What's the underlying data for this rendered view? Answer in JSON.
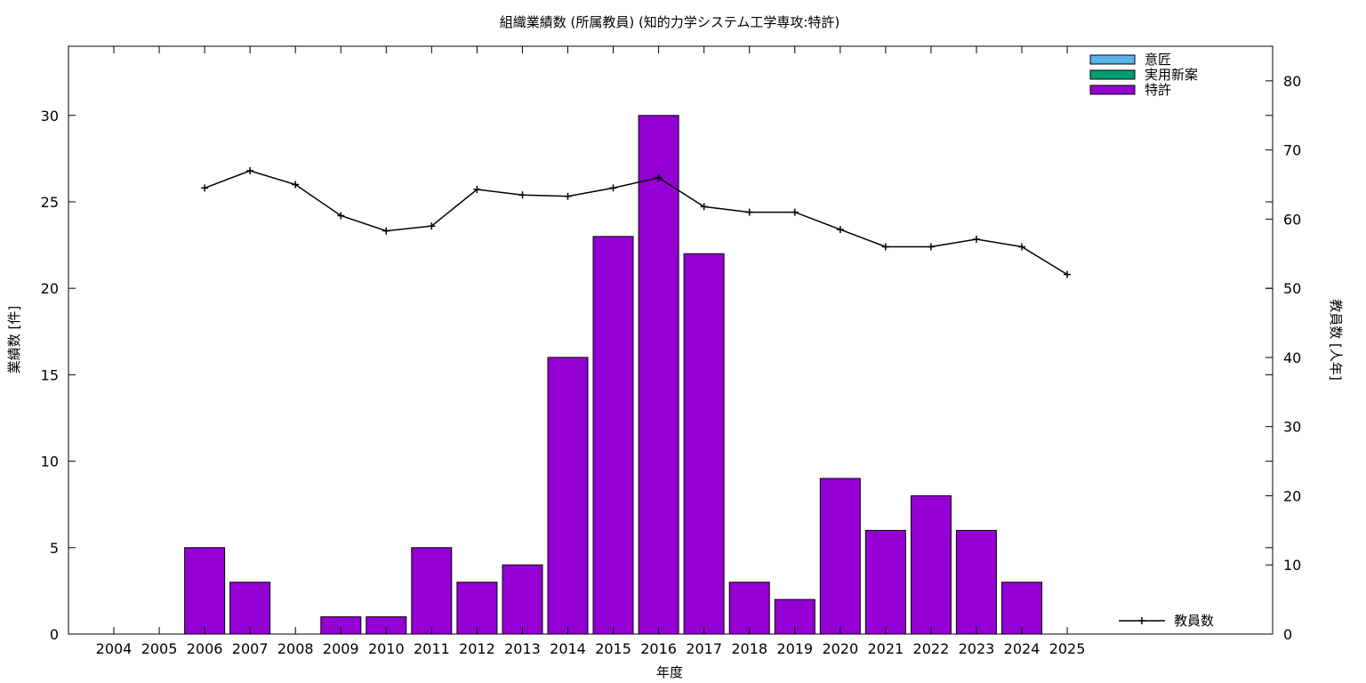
{
  "chart_data": {
    "type": "bar",
    "title": "組織業績数 (所属教員) (知的力学システム工学専攻:特許)",
    "xlabel": "年度",
    "ylabel": "業績数 [件]",
    "y2label": "教員数 [人年]",
    "categories": [
      "2004",
      "2005",
      "2006",
      "2007",
      "2008",
      "2009",
      "2010",
      "2011",
      "2012",
      "2013",
      "2014",
      "2015",
      "2016",
      "2017",
      "2018",
      "2019",
      "2020",
      "2021",
      "2022",
      "2023",
      "2024",
      "2025"
    ],
    "ylim": [
      0,
      34
    ],
    "y2lim": [
      0,
      85
    ],
    "yticks": [
      0,
      5,
      10,
      15,
      20,
      25,
      30
    ],
    "y2ticks": [
      0,
      10,
      20,
      30,
      40,
      50,
      60,
      70,
      80
    ],
    "grid": false,
    "legend_position": "top-right",
    "series": [
      {
        "name": "意匠",
        "type": "bar",
        "color": "#56b4e9",
        "values": [
          0,
          0,
          0,
          0,
          0,
          0,
          0,
          0,
          0,
          0,
          0,
          0,
          0,
          0,
          0,
          0,
          0,
          0,
          0,
          0,
          0,
          0
        ]
      },
      {
        "name": "実用新案",
        "type": "bar",
        "color": "#009e73",
        "values": [
          0,
          0,
          0,
          0,
          0,
          0,
          0,
          0,
          0,
          0,
          0,
          0,
          0,
          0,
          0,
          0,
          0,
          0,
          0,
          0,
          0,
          0
        ]
      },
      {
        "name": "特許",
        "type": "bar",
        "color": "#9400d3",
        "values": [
          0,
          0,
          5,
          3,
          0,
          1,
          1,
          5,
          3,
          4,
          16,
          23,
          30,
          22,
          3,
          2,
          9,
          6,
          8,
          6,
          3,
          0
        ]
      },
      {
        "name": "教員数",
        "type": "line",
        "axis": "y2",
        "color": "#000000",
        "values": [
          null,
          null,
          64.5,
          67,
          65,
          60.5,
          58.3,
          59,
          64.3,
          63.5,
          63.3,
          64.5,
          66,
          61.8,
          61,
          61,
          58.5,
          56,
          56,
          57.1,
          56,
          52
        ]
      }
    ]
  }
}
